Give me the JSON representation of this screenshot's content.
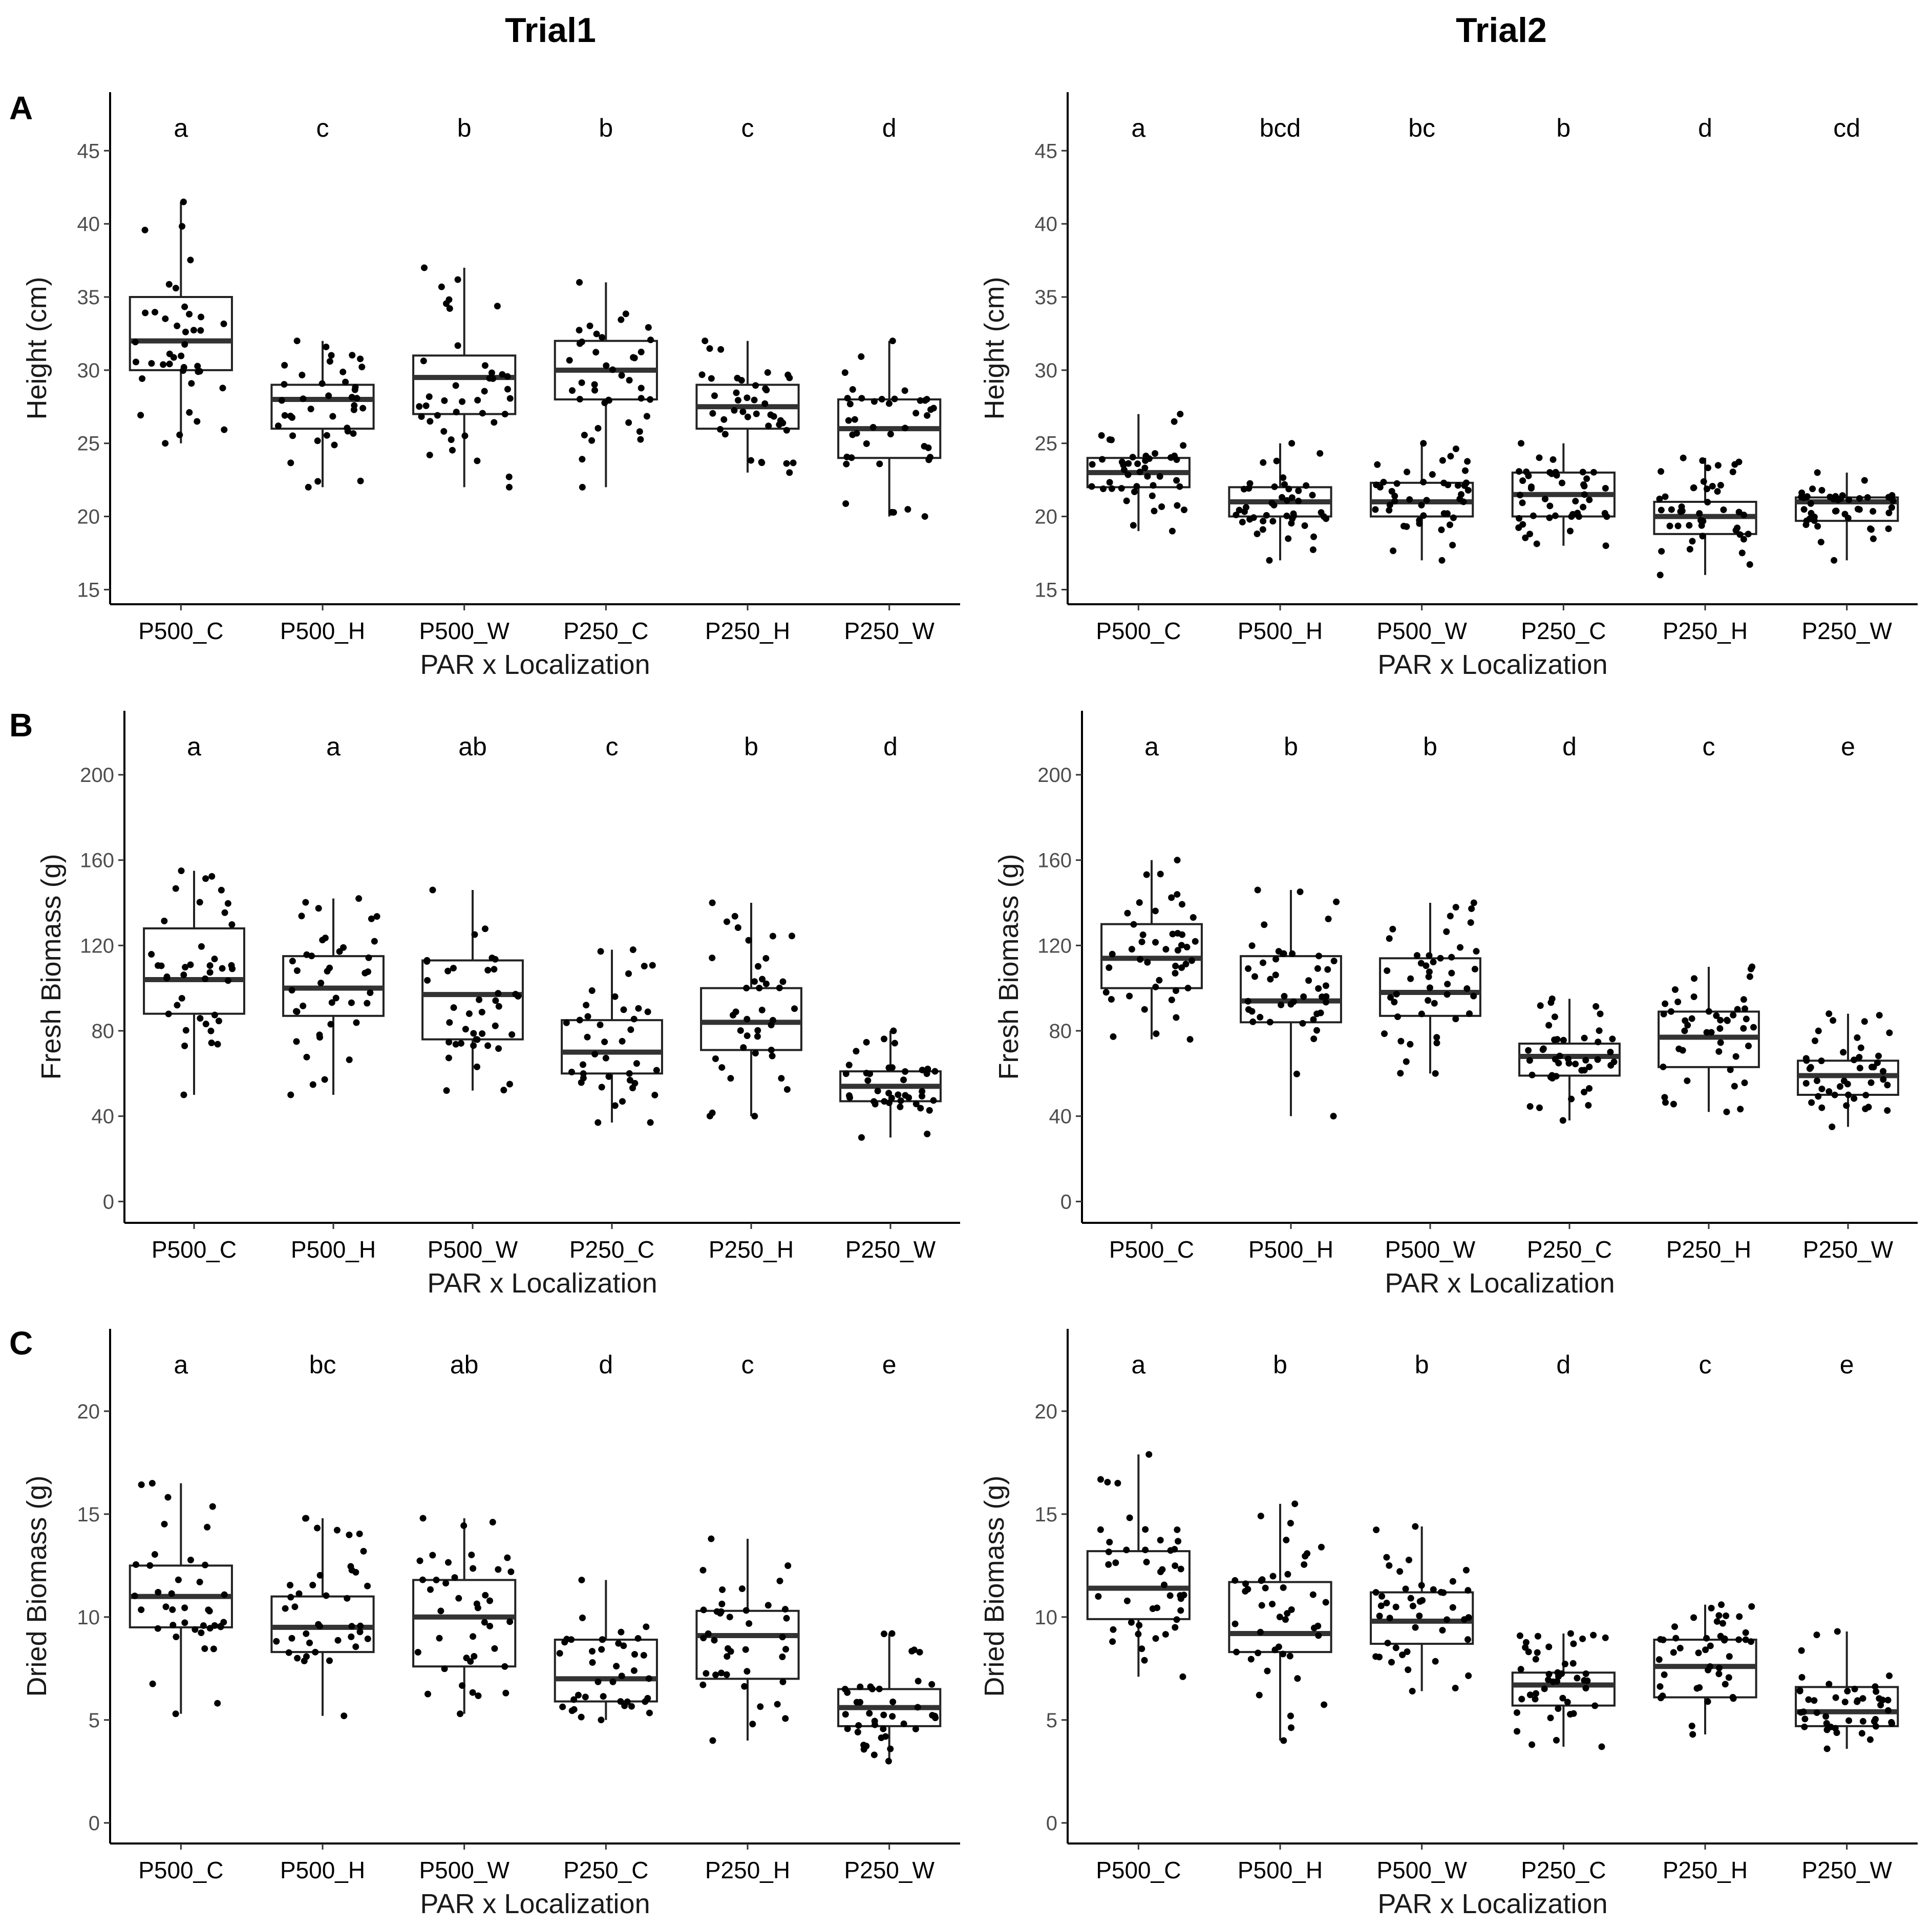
{
  "figure": {
    "columns": [
      "Trial1",
      "Trial2"
    ],
    "rows": [
      "A",
      "B",
      "C"
    ]
  },
  "chart_data": [
    {
      "type": "box",
      "row": "A",
      "trial": "Trial1",
      "xlabel": "PAR x Localization",
      "ylabel": "Height (cm)",
      "ylim": [
        14,
        49
      ],
      "yticks": [
        15,
        20,
        25,
        30,
        35,
        40,
        45
      ],
      "categories": [
        "P500_C",
        "P500_H",
        "P500_W",
        "P250_C",
        "P250_H",
        "P250_W"
      ],
      "letters": [
        "a",
        "c",
        "b",
        "b",
        "c",
        "d"
      ],
      "boxes": [
        {
          "min": 25,
          "q1": 30,
          "median": 32,
          "q3": 35,
          "max": 41.5
        },
        {
          "min": 22,
          "q1": 26,
          "median": 28,
          "q3": 29,
          "max": 32
        },
        {
          "min": 22,
          "q1": 27,
          "median": 29.5,
          "q3": 31,
          "max": 37
        },
        {
          "min": 22,
          "q1": 28,
          "median": 30,
          "q3": 32,
          "max": 36
        },
        {
          "min": 23,
          "q1": 26,
          "median": 27.5,
          "q3": 29,
          "max": 32
        },
        {
          "min": 20,
          "q1": 24,
          "median": 26,
          "q3": 28,
          "max": 32
        }
      ],
      "n_points": 40
    },
    {
      "type": "box",
      "row": "A",
      "trial": "Trial2",
      "xlabel": "PAR x Localization",
      "ylabel": "Height (cm)",
      "ylim": [
        14,
        49
      ],
      "yticks": [
        15,
        20,
        25,
        30,
        35,
        40,
        45
      ],
      "categories": [
        "P500_C",
        "P500_H",
        "P500_W",
        "P250_C",
        "P250_H",
        "P250_W"
      ],
      "letters": [
        "a",
        "bcd",
        "bc",
        "b",
        "d",
        "cd"
      ],
      "boxes": [
        {
          "min": 19,
          "q1": 22,
          "median": 23,
          "q3": 24,
          "max": 27
        },
        {
          "min": 17,
          "q1": 20,
          "median": 21,
          "q3": 22,
          "max": 25
        },
        {
          "min": 17,
          "q1": 20,
          "median": 21,
          "q3": 22.3,
          "max": 25
        },
        {
          "min": 18,
          "q1": 20,
          "median": 21.5,
          "q3": 23,
          "max": 25
        },
        {
          "min": 16,
          "q1": 18.8,
          "median": 20,
          "q3": 21,
          "max": 24
        },
        {
          "min": 17,
          "q1": 19.7,
          "median": 21,
          "q3": 21.3,
          "max": 23
        }
      ],
      "n_points": 45
    },
    {
      "type": "box",
      "row": "B",
      "trial": "Trial1",
      "xlabel": "PAR x Localization",
      "ylabel": "Fresh Biomass (g)",
      "ylim": [
        -10,
        230
      ],
      "yticks": [
        0,
        40,
        80,
        120,
        160,
        200
      ],
      "categories": [
        "P500_C",
        "P500_H",
        "P500_W",
        "P250_C",
        "P250_H",
        "P250_W"
      ],
      "letters": [
        "a",
        "a",
        "ab",
        "c",
        "b",
        "d"
      ],
      "boxes": [
        {
          "min": 50,
          "q1": 88,
          "median": 104,
          "q3": 128,
          "max": 155
        },
        {
          "min": 50,
          "q1": 87,
          "median": 100,
          "q3": 115,
          "max": 142
        },
        {
          "min": 52,
          "q1": 76,
          "median": 97,
          "q3": 113,
          "max": 146
        },
        {
          "min": 37,
          "q1": 60,
          "median": 70,
          "q3": 85,
          "max": 118
        },
        {
          "min": 40,
          "q1": 71,
          "median": 84,
          "q3": 100,
          "max": 140
        },
        {
          "min": 30,
          "q1": 47,
          "median": 54,
          "q3": 61,
          "max": 80
        }
      ],
      "n_points": 40
    },
    {
      "type": "box",
      "row": "B",
      "trial": "Trial2",
      "xlabel": "PAR x Localization",
      "ylabel": "Fresh Biomass (g)",
      "ylim": [
        -10,
        230
      ],
      "yticks": [
        0,
        40,
        80,
        120,
        160,
        200
      ],
      "categories": [
        "P500_C",
        "P500_H",
        "P500_W",
        "P250_C",
        "P250_H",
        "P250_W"
      ],
      "letters": [
        "a",
        "b",
        "b",
        "d",
        "c",
        "e"
      ],
      "boxes": [
        {
          "min": 76,
          "q1": 100,
          "median": 114,
          "q3": 130,
          "max": 160
        },
        {
          "min": 40,
          "q1": 84,
          "median": 94,
          "q3": 115,
          "max": 146
        },
        {
          "min": 60,
          "q1": 87,
          "median": 98,
          "q3": 114,
          "max": 140
        },
        {
          "min": 38,
          "q1": 59,
          "median": 68,
          "q3": 74,
          "max": 95
        },
        {
          "min": 42,
          "q1": 63,
          "median": 77,
          "q3": 89,
          "max": 110
        },
        {
          "min": 35,
          "q1": 50,
          "median": 59,
          "q3": 66,
          "max": 88
        }
      ],
      "n_points": 45
    },
    {
      "type": "box",
      "row": "C",
      "trial": "Trial1",
      "xlabel": "PAR x Localization",
      "ylabel": "Dried Biomass (g)",
      "ylim": [
        -1,
        24
      ],
      "yticks": [
        0,
        5,
        10,
        15,
        20
      ],
      "categories": [
        "P500_C",
        "P500_H",
        "P500_W",
        "P250_C",
        "P250_H",
        "P250_W"
      ],
      "letters": [
        "a",
        "bc",
        "ab",
        "d",
        "c",
        "e"
      ],
      "boxes": [
        {
          "min": 5.3,
          "q1": 9.5,
          "median": 11,
          "q3": 12.5,
          "max": 16.5
        },
        {
          "min": 5.2,
          "q1": 8.3,
          "median": 9.5,
          "q3": 11,
          "max": 14.8
        },
        {
          "min": 5.3,
          "q1": 7.6,
          "median": 10,
          "q3": 11.8,
          "max": 14.8
        },
        {
          "min": 5,
          "q1": 5.9,
          "median": 7,
          "q3": 8.9,
          "max": 11.8
        },
        {
          "min": 4,
          "q1": 7,
          "median": 9.1,
          "q3": 10.3,
          "max": 13.8
        },
        {
          "min": 3,
          "q1": 4.7,
          "median": 5.6,
          "q3": 6.5,
          "max": 9.2
        }
      ],
      "n_points": 40
    },
    {
      "type": "box",
      "row": "C",
      "trial": "Trial2",
      "xlabel": "PAR x Localization",
      "ylabel": "Dried Biomass (g)",
      "ylim": [
        -1,
        24
      ],
      "yticks": [
        0,
        5,
        10,
        15,
        20
      ],
      "categories": [
        "P500_C",
        "P500_H",
        "P500_W",
        "P250_C",
        "P250_H",
        "P250_W"
      ],
      "letters": [
        "a",
        "b",
        "b",
        "d",
        "c",
        "e"
      ],
      "boxes": [
        {
          "min": 7.1,
          "q1": 9.9,
          "median": 11.4,
          "q3": 13.2,
          "max": 17.9
        },
        {
          "min": 4,
          "q1": 8.3,
          "median": 9.2,
          "q3": 11.7,
          "max": 15.5
        },
        {
          "min": 6.4,
          "q1": 8.7,
          "median": 9.8,
          "q3": 11.2,
          "max": 14.4
        },
        {
          "min": 3.7,
          "q1": 5.7,
          "median": 6.7,
          "q3": 7.3,
          "max": 9.2
        },
        {
          "min": 4.3,
          "q1": 6.1,
          "median": 7.6,
          "q3": 8.9,
          "max": 10.6
        },
        {
          "min": 3.6,
          "q1": 4.7,
          "median": 5.4,
          "q3": 6.6,
          "max": 9.3
        }
      ],
      "n_points": 45
    }
  ]
}
